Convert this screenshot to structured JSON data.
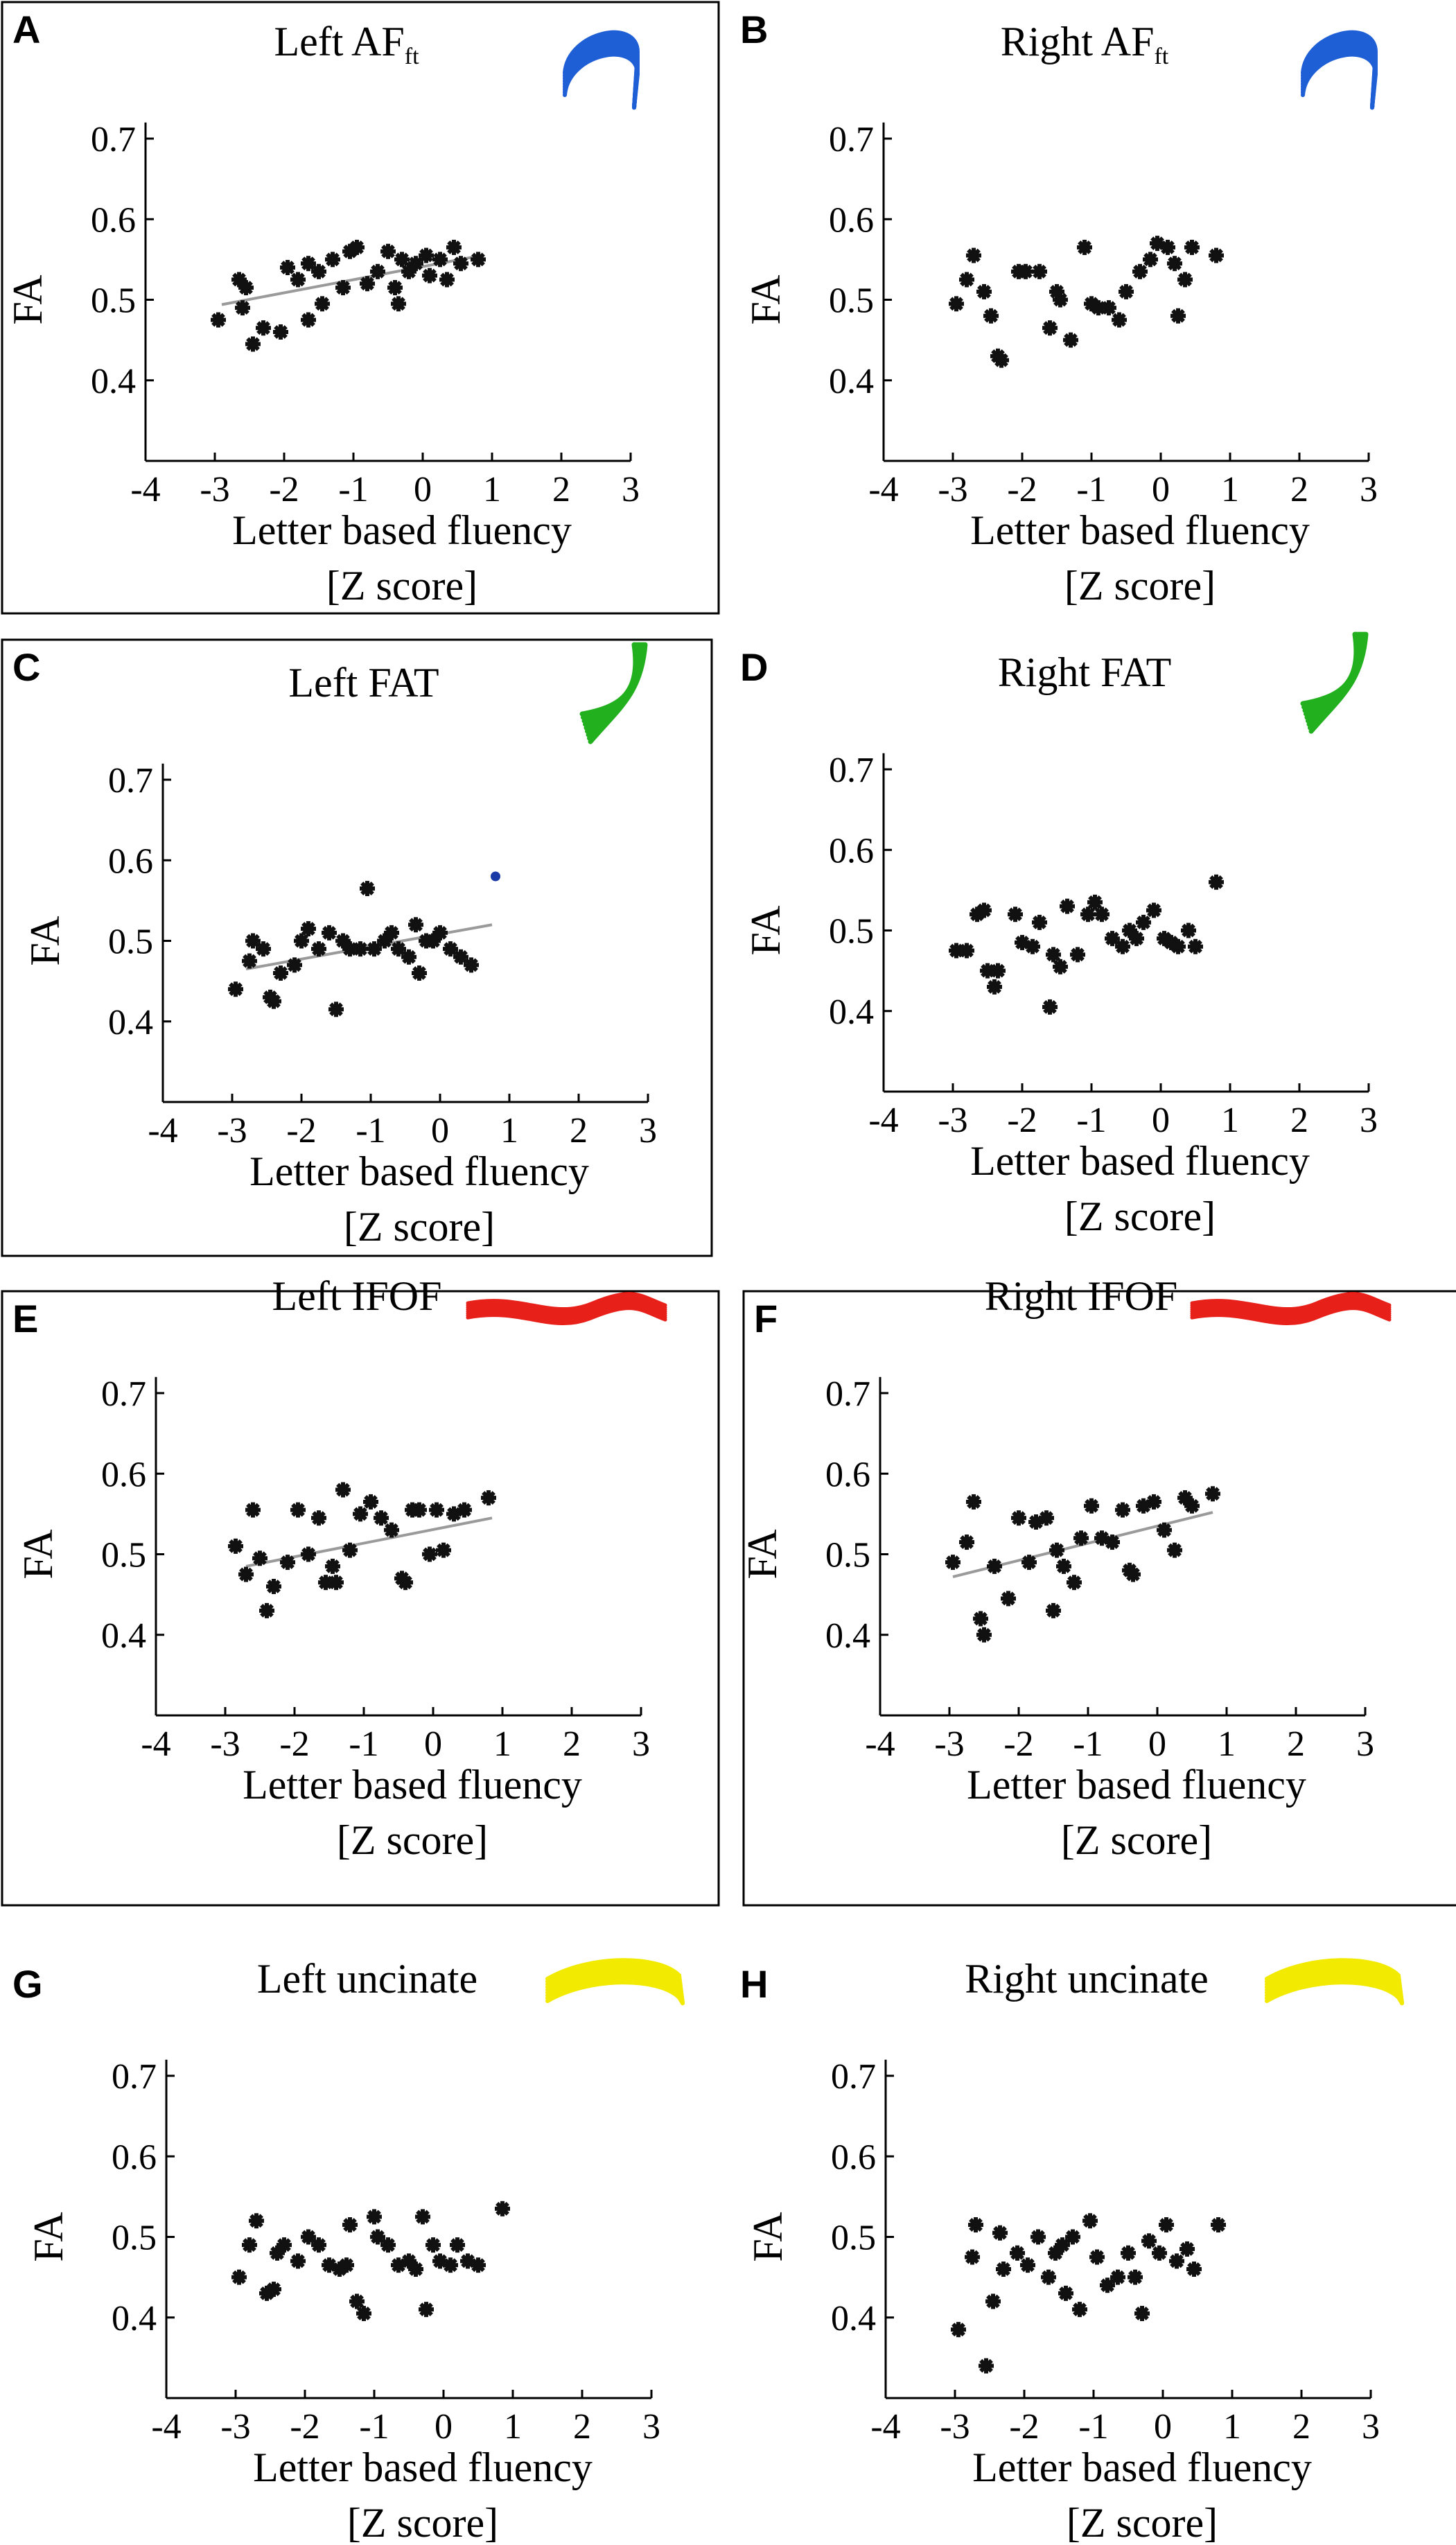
{
  "chart_data": [
    {
      "panel": "A",
      "type": "scatter",
      "title_main": "Left AF",
      "title_sub": "ft",
      "xlabel": "Letter based fluency",
      "xlabel2": "[Z score]",
      "ylabel": "FA",
      "xlim": [
        -4,
        3
      ],
      "ylim": [
        0.3,
        0.7
      ],
      "xticks": [
        "-4",
        "-3",
        "-2",
        "-1",
        "0",
        "1",
        "2",
        "3"
      ],
      "yticks": [
        "0.4",
        "0.5",
        "0.6",
        "0.7"
      ],
      "framed": true,
      "fit_line": true,
      "tract_color": "#1f5fd6",
      "tract_shape": "arc",
      "fit": {
        "x1": -2.9,
        "y1": 0.494,
        "x2": 0.85,
        "y2": 0.555
      },
      "points": [
        [
          -2.95,
          0.475
        ],
        [
          -2.65,
          0.525
        ],
        [
          -2.55,
          0.515
        ],
        [
          -2.45,
          0.445
        ],
        [
          -2.3,
          0.465
        ],
        [
          -2.05,
          0.46
        ],
        [
          -1.95,
          0.54
        ],
        [
          -1.8,
          0.525
        ],
        [
          -1.65,
          0.545
        ],
        [
          -1.5,
          0.535
        ],
        [
          -1.45,
          0.495
        ],
        [
          -1.3,
          0.55
        ],
        [
          -1.15,
          0.515
        ],
        [
          -1.05,
          0.56
        ],
        [
          -0.95,
          0.565
        ],
        [
          -0.8,
          0.52
        ],
        [
          -0.65,
          0.535
        ],
        [
          -0.5,
          0.56
        ],
        [
          -0.4,
          0.515
        ],
        [
          -0.3,
          0.55
        ],
        [
          -0.2,
          0.535
        ],
        [
          -0.1,
          0.545
        ],
        [
          0.05,
          0.555
        ],
        [
          0.1,
          0.53
        ],
        [
          0.25,
          0.55
        ],
        [
          0.35,
          0.525
        ],
        [
          0.45,
          0.565
        ],
        [
          0.55,
          0.545
        ],
        [
          0.8,
          0.55
        ],
        [
          -0.35,
          0.495
        ],
        [
          -1.65,
          0.475
        ],
        [
          -2.6,
          0.49
        ]
      ]
    },
    {
      "panel": "B",
      "type": "scatter",
      "title_main": "Right AF",
      "title_sub": "ft",
      "xlabel": "Letter based fluency",
      "xlabel2": "[Z score]",
      "ylabel": "FA",
      "xlim": [
        -4,
        3
      ],
      "ylim": [
        0.3,
        0.7
      ],
      "xticks": [
        "-4",
        "-3",
        "-2",
        "-1",
        "0",
        "1",
        "2",
        "3"
      ],
      "yticks": [
        "0.4",
        "0.5",
        "0.6",
        "0.7"
      ],
      "framed": false,
      "fit_line": false,
      "tract_color": "#1f5fd6",
      "tract_shape": "arc",
      "points": [
        [
          -2.95,
          0.495
        ],
        [
          -2.8,
          0.525
        ],
        [
          -2.7,
          0.555
        ],
        [
          -2.55,
          0.51
        ],
        [
          -2.45,
          0.48
        ],
        [
          -2.35,
          0.43
        ],
        [
          -2.3,
          0.425
        ],
        [
          -2.05,
          0.535
        ],
        [
          -1.95,
          0.535
        ],
        [
          -1.75,
          0.535
        ],
        [
          -1.6,
          0.465
        ],
        [
          -1.5,
          0.51
        ],
        [
          -1.45,
          0.5
        ],
        [
          -1.3,
          0.45
        ],
        [
          -1.1,
          0.565
        ],
        [
          -1.0,
          0.495
        ],
        [
          -0.9,
          0.49
        ],
        [
          -0.75,
          0.49
        ],
        [
          -0.6,
          0.475
        ],
        [
          -0.5,
          0.51
        ],
        [
          -0.3,
          0.535
        ],
        [
          -0.15,
          0.55
        ],
        [
          -0.05,
          0.57
        ],
        [
          0.1,
          0.565
        ],
        [
          0.2,
          0.545
        ],
        [
          0.25,
          0.48
        ],
        [
          0.35,
          0.525
        ],
        [
          0.45,
          0.565
        ],
        [
          0.8,
          0.555
        ]
      ]
    },
    {
      "panel": "C",
      "type": "scatter",
      "title_main": "Left FAT",
      "title_sub": "",
      "xlabel": "Letter based fluency",
      "xlabel2": "[Z score]",
      "ylabel": "FA",
      "xlim": [
        -4,
        3
      ],
      "ylim": [
        0.3,
        0.7
      ],
      "xticks": [
        "-4",
        "-3",
        "-2",
        "-1",
        "0",
        "1",
        "2",
        "3"
      ],
      "yticks": [
        "0.4",
        "0.5",
        "0.6",
        "0.7"
      ],
      "framed": true,
      "fit_line": true,
      "tract_color": "#22b01e",
      "tract_shape": "fat",
      "fit": {
        "x1": -2.8,
        "y1": 0.465,
        "x2": 0.75,
        "y2": 0.52
      },
      "outlier": [
        0.8,
        0.58
      ],
      "outlier_color": "#1a3aa8",
      "points": [
        [
          -2.95,
          0.44
        ],
        [
          -2.75,
          0.475
        ],
        [
          -2.7,
          0.5
        ],
        [
          -2.55,
          0.49
        ],
        [
          -2.45,
          0.43
        ],
        [
          -2.4,
          0.425
        ],
        [
          -2.3,
          0.46
        ],
        [
          -2.1,
          0.47
        ],
        [
          -2.0,
          0.5
        ],
        [
          -1.9,
          0.515
        ],
        [
          -1.75,
          0.49
        ],
        [
          -1.6,
          0.51
        ],
        [
          -1.5,
          0.415
        ],
        [
          -1.4,
          0.5
        ],
        [
          -1.3,
          0.49
        ],
        [
          -1.15,
          0.49
        ],
        [
          -1.05,
          0.565
        ],
        [
          -0.95,
          0.49
        ],
        [
          -0.8,
          0.5
        ],
        [
          -0.7,
          0.51
        ],
        [
          -0.6,
          0.49
        ],
        [
          -0.45,
          0.48
        ],
        [
          -0.35,
          0.52
        ],
        [
          -0.3,
          0.46
        ],
        [
          -0.2,
          0.5
        ],
        [
          -0.1,
          0.5
        ],
        [
          0.0,
          0.51
        ],
        [
          0.15,
          0.49
        ],
        [
          0.3,
          0.48
        ],
        [
          0.45,
          0.47
        ]
      ]
    },
    {
      "panel": "D",
      "type": "scatter",
      "title_main": "Right FAT",
      "title_sub": "",
      "xlabel": "Letter based fluency",
      "xlabel2": "[Z score]",
      "ylabel": "FA",
      "xlim": [
        -4,
        3
      ],
      "ylim": [
        0.3,
        0.7
      ],
      "xticks": [
        "-4",
        "-3",
        "-2",
        "-1",
        "0",
        "1",
        "2",
        "3"
      ],
      "yticks": [
        "0.4",
        "0.5",
        "0.6",
        "0.7"
      ],
      "framed": false,
      "fit_line": false,
      "tract_color": "#22b01e",
      "tract_shape": "fat",
      "points": [
        [
          -2.95,
          0.475
        ],
        [
          -2.8,
          0.475
        ],
        [
          -2.65,
          0.52
        ],
        [
          -2.55,
          0.525
        ],
        [
          -2.5,
          0.45
        ],
        [
          -2.4,
          0.43
        ],
        [
          -2.35,
          0.45
        ],
        [
          -2.1,
          0.52
        ],
        [
          -2.0,
          0.485
        ],
        [
          -1.85,
          0.48
        ],
        [
          -1.75,
          0.51
        ],
        [
          -1.6,
          0.405
        ],
        [
          -1.55,
          0.47
        ],
        [
          -1.45,
          0.455
        ],
        [
          -1.35,
          0.53
        ],
        [
          -1.2,
          0.47
        ],
        [
          -1.05,
          0.52
        ],
        [
          -0.95,
          0.535
        ],
        [
          -0.85,
          0.52
        ],
        [
          -0.7,
          0.49
        ],
        [
          -0.55,
          0.48
        ],
        [
          -0.45,
          0.5
        ],
        [
          -0.35,
          0.49
        ],
        [
          -0.25,
          0.51
        ],
        [
          -0.1,
          0.525
        ],
        [
          0.05,
          0.49
        ],
        [
          0.15,
          0.485
        ],
        [
          0.25,
          0.48
        ],
        [
          0.4,
          0.5
        ],
        [
          0.5,
          0.48
        ],
        [
          0.8,
          0.56
        ]
      ]
    },
    {
      "panel": "E",
      "type": "scatter",
      "title_main": "Left IFOF",
      "title_sub": "",
      "xlabel": "Letter based fluency",
      "xlabel2": "[Z score]",
      "ylabel": "FA",
      "xlim": [
        -4,
        3
      ],
      "ylim": [
        0.3,
        0.7
      ],
      "xticks": [
        "-4",
        "-3",
        "-2",
        "-1",
        "0",
        "1",
        "2",
        "3"
      ],
      "yticks": [
        "0.4",
        "0.5",
        "0.6",
        "0.7"
      ],
      "framed": true,
      "fit_line": true,
      "tract_color": "#e8201a",
      "tract_shape": "ifof",
      "fit": {
        "x1": -2.7,
        "y1": 0.485,
        "x2": 0.85,
        "y2": 0.545
      },
      "points": [
        [
          -2.85,
          0.51
        ],
        [
          -2.7,
          0.475
        ],
        [
          -2.6,
          0.555
        ],
        [
          -2.5,
          0.495
        ],
        [
          -2.4,
          0.43
        ],
        [
          -2.3,
          0.46
        ],
        [
          -2.1,
          0.49
        ],
        [
          -1.95,
          0.555
        ],
        [
          -1.8,
          0.5
        ],
        [
          -1.65,
          0.545
        ],
        [
          -1.55,
          0.465
        ],
        [
          -1.45,
          0.485
        ],
        [
          -1.4,
          0.465
        ],
        [
          -1.3,
          0.58
        ],
        [
          -1.2,
          0.505
        ],
        [
          -1.05,
          0.55
        ],
        [
          -0.9,
          0.565
        ],
        [
          -0.75,
          0.545
        ],
        [
          -0.6,
          0.53
        ],
        [
          -0.45,
          0.47
        ],
        [
          -0.4,
          0.465
        ],
        [
          -0.3,
          0.555
        ],
        [
          -0.2,
          0.555
        ],
        [
          -0.05,
          0.5
        ],
        [
          0.05,
          0.555
        ],
        [
          0.15,
          0.505
        ],
        [
          0.3,
          0.55
        ],
        [
          0.45,
          0.555
        ],
        [
          0.8,
          0.57
        ]
      ]
    },
    {
      "panel": "F",
      "type": "scatter",
      "title_main": "Right IFOF",
      "title_sub": "",
      "xlabel": "Letter based fluency",
      "xlabel2": "[Z score]",
      "ylabel": "FA",
      "xlim": [
        -4,
        3
      ],
      "ylim": [
        0.3,
        0.7
      ],
      "xticks": [
        "-4",
        "-3",
        "-2",
        "-1",
        "0",
        "1",
        "2",
        "3"
      ],
      "yticks": [
        "0.4",
        "0.5",
        "0.6",
        "0.7"
      ],
      "framed": true,
      "fit_line": true,
      "tract_color": "#e8201a",
      "tract_shape": "ifof",
      "fit": {
        "x1": -2.95,
        "y1": 0.472,
        "x2": 0.8,
        "y2": 0.552
      },
      "points": [
        [
          -2.95,
          0.49
        ],
        [
          -2.75,
          0.515
        ],
        [
          -2.65,
          0.565
        ],
        [
          -2.55,
          0.42
        ],
        [
          -2.5,
          0.4
        ],
        [
          -2.35,
          0.485
        ],
        [
          -2.15,
          0.445
        ],
        [
          -2.0,
          0.545
        ],
        [
          -1.85,
          0.49
        ],
        [
          -1.75,
          0.54
        ],
        [
          -1.6,
          0.545
        ],
        [
          -1.5,
          0.43
        ],
        [
          -1.45,
          0.505
        ],
        [
          -1.35,
          0.485
        ],
        [
          -1.2,
          0.465
        ],
        [
          -1.1,
          0.52
        ],
        [
          -0.95,
          0.56
        ],
        [
          -0.8,
          0.52
        ],
        [
          -0.65,
          0.515
        ],
        [
          -0.5,
          0.555
        ],
        [
          -0.4,
          0.48
        ],
        [
          -0.35,
          0.475
        ],
        [
          -0.2,
          0.56
        ],
        [
          -0.05,
          0.565
        ],
        [
          0.1,
          0.53
        ],
        [
          0.25,
          0.505
        ],
        [
          0.4,
          0.57
        ],
        [
          0.5,
          0.56
        ],
        [
          0.8,
          0.575
        ]
      ]
    },
    {
      "panel": "G",
      "type": "scatter",
      "title_main": "Left uncinate",
      "title_sub": "",
      "xlabel": "Letter based fluency",
      "xlabel2": "[Z score]",
      "ylabel": "FA",
      "xlim": [
        -4,
        3
      ],
      "ylim": [
        0.3,
        0.7
      ],
      "xticks": [
        "-4",
        "-3",
        "-2",
        "-1",
        "0",
        "1",
        "2",
        "3"
      ],
      "yticks": [
        "0.4",
        "0.5",
        "0.6",
        "0.7"
      ],
      "framed": false,
      "fit_line": false,
      "tract_color": "#f2ea00",
      "tract_shape": "hook",
      "points": [
        [
          -2.95,
          0.45
        ],
        [
          -2.8,
          0.49
        ],
        [
          -2.7,
          0.52
        ],
        [
          -2.55,
          0.43
        ],
        [
          -2.45,
          0.435
        ],
        [
          -2.4,
          0.48
        ],
        [
          -2.3,
          0.49
        ],
        [
          -2.1,
          0.47
        ],
        [
          -1.95,
          0.5
        ],
        [
          -1.8,
          0.49
        ],
        [
          -1.65,
          0.465
        ],
        [
          -1.5,
          0.46
        ],
        [
          -1.4,
          0.465
        ],
        [
          -1.35,
          0.515
        ],
        [
          -1.25,
          0.42
        ],
        [
          -1.15,
          0.405
        ],
        [
          -1.0,
          0.525
        ],
        [
          -0.95,
          0.5
        ],
        [
          -0.8,
          0.49
        ],
        [
          -0.65,
          0.465
        ],
        [
          -0.5,
          0.47
        ],
        [
          -0.4,
          0.46
        ],
        [
          -0.3,
          0.525
        ],
        [
          -0.25,
          0.41
        ],
        [
          -0.15,
          0.49
        ],
        [
          -0.05,
          0.47
        ],
        [
          0.1,
          0.465
        ],
        [
          0.2,
          0.49
        ],
        [
          0.35,
          0.47
        ],
        [
          0.5,
          0.465
        ],
        [
          0.85,
          0.535
        ]
      ]
    },
    {
      "panel": "H",
      "type": "scatter",
      "title_main": "Right uncinate",
      "title_sub": "",
      "xlabel": "Letter based fluency",
      "xlabel2": "[Z score]",
      "ylabel": "FA",
      "xlim": [
        -4,
        3
      ],
      "ylim": [
        0.3,
        0.7
      ],
      "xticks": [
        "-4",
        "-3",
        "-2",
        "-1",
        "0",
        "1",
        "2",
        "3"
      ],
      "yticks": [
        "0.4",
        "0.5",
        "0.6",
        "0.7"
      ],
      "framed": false,
      "fit_line": false,
      "tract_color": "#f2ea00",
      "tract_shape": "hook",
      "points": [
        [
          -2.95,
          0.385
        ],
        [
          -2.75,
          0.475
        ],
        [
          -2.7,
          0.515
        ],
        [
          -2.55,
          0.34
        ],
        [
          -2.45,
          0.42
        ],
        [
          -2.35,
          0.505
        ],
        [
          -2.3,
          0.46
        ],
        [
          -2.1,
          0.48
        ],
        [
          -1.95,
          0.465
        ],
        [
          -1.8,
          0.5
        ],
        [
          -1.65,
          0.45
        ],
        [
          -1.55,
          0.48
        ],
        [
          -1.45,
          0.49
        ],
        [
          -1.4,
          0.43
        ],
        [
          -1.3,
          0.5
        ],
        [
          -1.2,
          0.41
        ],
        [
          -1.05,
          0.52
        ],
        [
          -0.95,
          0.475
        ],
        [
          -0.8,
          0.44
        ],
        [
          -0.65,
          0.45
        ],
        [
          -0.5,
          0.48
        ],
        [
          -0.4,
          0.45
        ],
        [
          -0.3,
          0.405
        ],
        [
          -0.2,
          0.495
        ],
        [
          -0.05,
          0.48
        ],
        [
          0.05,
          0.515
        ],
        [
          0.2,
          0.47
        ],
        [
          0.35,
          0.485
        ],
        [
          0.45,
          0.46
        ],
        [
          0.8,
          0.515
        ]
      ]
    }
  ]
}
